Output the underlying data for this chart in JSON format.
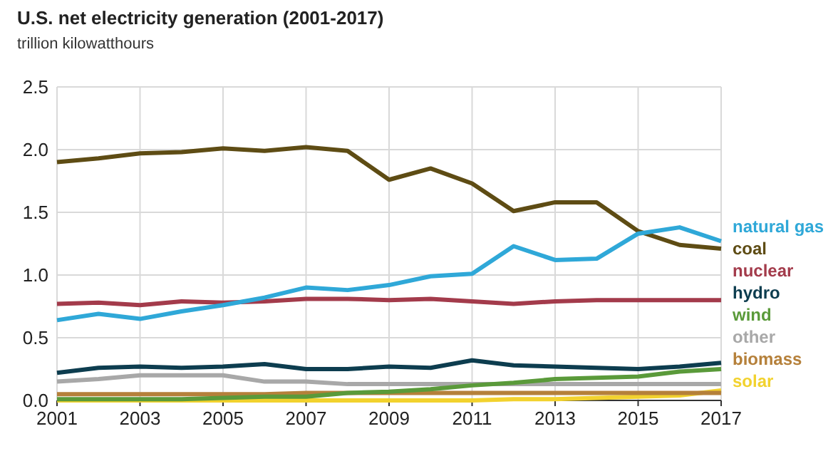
{
  "chart_data": {
    "type": "line",
    "title": "U.S. net electricity generation (2001-2017)",
    "ylabel": "trillion kilowatthours",
    "x": [
      2001,
      2002,
      2003,
      2004,
      2005,
      2006,
      2007,
      2008,
      2009,
      2010,
      2011,
      2012,
      2013,
      2014,
      2015,
      2016,
      2017
    ],
    "series": [
      {
        "name": "natural gas",
        "color": "#2fa8d8",
        "values": [
          0.64,
          0.69,
          0.65,
          0.71,
          0.76,
          0.82,
          0.9,
          0.88,
          0.92,
          0.99,
          1.01,
          1.23,
          1.12,
          1.13,
          1.33,
          1.38,
          1.27
        ]
      },
      {
        "name": "coal",
        "color": "#5e4c14",
        "values": [
          1.9,
          1.93,
          1.97,
          1.98,
          2.01,
          1.99,
          2.02,
          1.99,
          1.76,
          1.85,
          1.73,
          1.51,
          1.58,
          1.58,
          1.35,
          1.24,
          1.21
        ]
      },
      {
        "name": "nuclear",
        "color": "#a33b4b",
        "values": [
          0.77,
          0.78,
          0.76,
          0.79,
          0.78,
          0.79,
          0.81,
          0.81,
          0.8,
          0.81,
          0.79,
          0.77,
          0.79,
          0.8,
          0.8,
          0.8,
          0.8
        ]
      },
      {
        "name": "hydro",
        "color": "#0d3d4f",
        "values": [
          0.22,
          0.26,
          0.27,
          0.26,
          0.27,
          0.29,
          0.25,
          0.25,
          0.27,
          0.26,
          0.32,
          0.28,
          0.27,
          0.26,
          0.25,
          0.27,
          0.3
        ]
      },
      {
        "name": "wind",
        "color": "#5a9a3a",
        "values": [
          0.01,
          0.01,
          0.01,
          0.01,
          0.02,
          0.03,
          0.03,
          0.06,
          0.07,
          0.09,
          0.12,
          0.14,
          0.17,
          0.18,
          0.19,
          0.23,
          0.25
        ]
      },
      {
        "name": "other",
        "color": "#a8a8a8",
        "values": [
          0.15,
          0.17,
          0.2,
          0.2,
          0.2,
          0.15,
          0.15,
          0.13,
          0.13,
          0.13,
          0.13,
          0.13,
          0.13,
          0.13,
          0.13,
          0.13,
          0.13
        ]
      },
      {
        "name": "biomass",
        "color": "#b5803a",
        "values": [
          0.05,
          0.05,
          0.05,
          0.05,
          0.05,
          0.05,
          0.06,
          0.06,
          0.06,
          0.06,
          0.06,
          0.06,
          0.06,
          0.06,
          0.06,
          0.06,
          0.06
        ]
      },
      {
        "name": "solar",
        "color": "#f2d22e",
        "values": [
          0,
          0,
          0,
          0,
          0,
          0,
          0,
          0,
          0,
          0,
          0,
          0.01,
          0.01,
          0.02,
          0.03,
          0.04,
          0.08
        ]
      }
    ],
    "xlim": [
      2001,
      2017
    ],
    "xticks": [
      2001,
      2003,
      2005,
      2007,
      2009,
      2011,
      2013,
      2015,
      2017
    ],
    "ylim": [
      0,
      2.5
    ],
    "yticks": [
      {
        "value": 0,
        "label": "0.0"
      },
      {
        "value": 0.5,
        "label": "0.5"
      },
      {
        "value": 1,
        "label": "1.0"
      },
      {
        "value": 1.5,
        "label": "1.5"
      },
      {
        "value": 2,
        "label": "2.0"
      },
      {
        "value": 2.5,
        "label": "2.5"
      }
    ],
    "grid": true,
    "legend": "right",
    "line_style": "solid",
    "marker": "none"
  }
}
